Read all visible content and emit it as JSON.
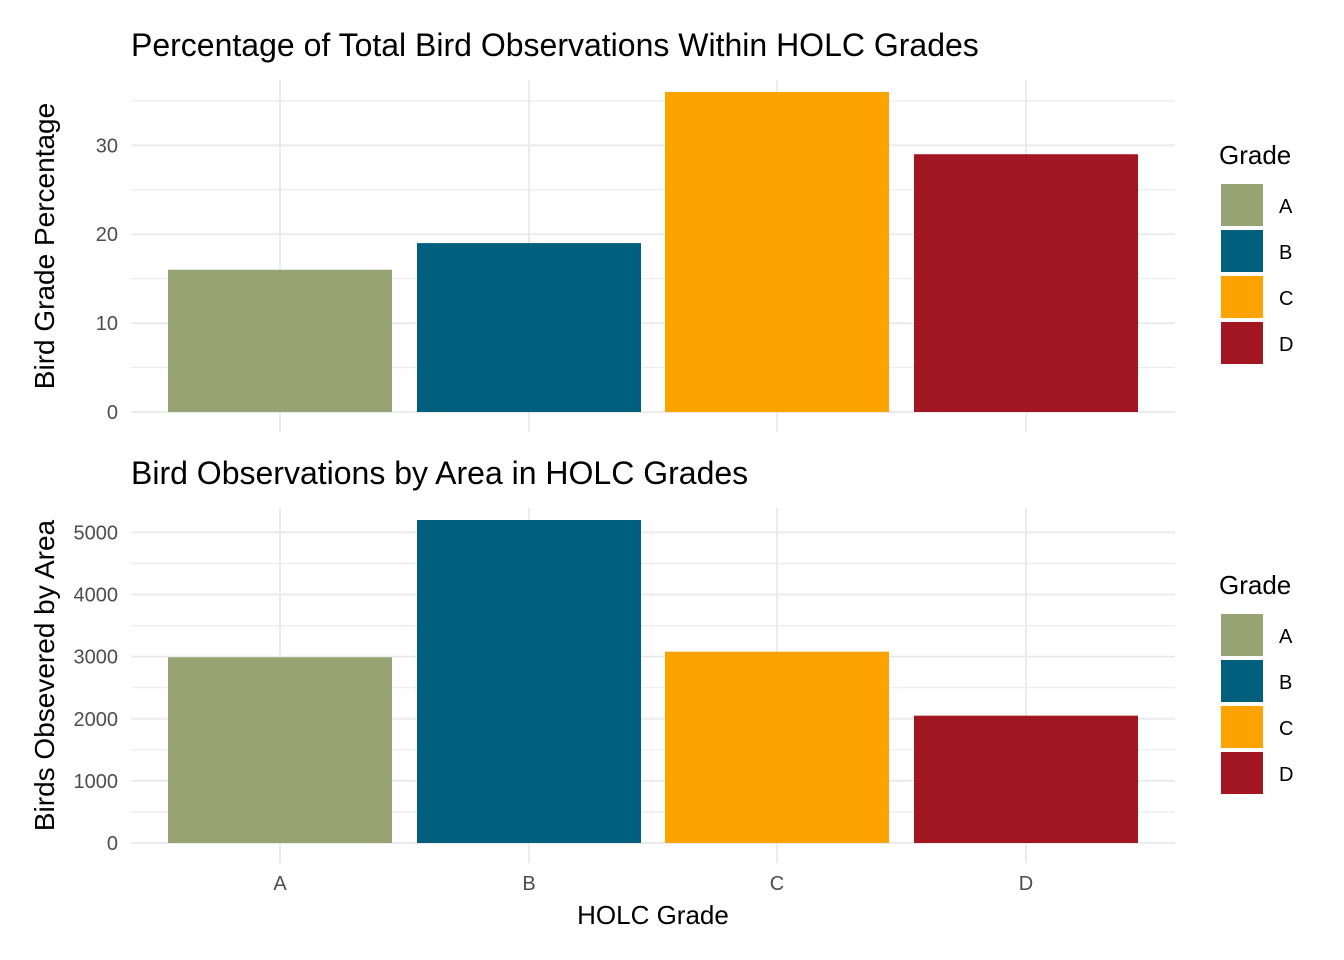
{
  "chart_data": [
    {
      "type": "bar",
      "title": "Percentage of Total Bird Observations Within HOLC Grades",
      "xlabel": "",
      "ylabel": "Bird Grade Percentage",
      "categories": [
        "A",
        "B",
        "C",
        "D"
      ],
      "values": [
        16,
        19,
        36,
        29
      ],
      "ylim": [
        0,
        36
      ],
      "yticks": [
        "0",
        "10",
        "20",
        "30"
      ],
      "show_x_ticks": false,
      "grid": true,
      "legend": {
        "title": "Grade",
        "position": "right",
        "entries": [
          "A",
          "B",
          "C",
          "D"
        ]
      }
    },
    {
      "type": "bar",
      "title": "Bird Observations by Area in HOLC Grades",
      "xlabel": "HOLC Grade",
      "ylabel": "Birds Obsevered by Area",
      "categories": [
        "A",
        "B",
        "C",
        "D"
      ],
      "values": [
        2990,
        5200,
        3080,
        2050
      ],
      "ylim": [
        0,
        5200
      ],
      "yticks": [
        "0",
        "1000",
        "2000",
        "3000",
        "4000",
        "5000"
      ],
      "show_x_ticks": true,
      "grid": true,
      "legend": {
        "title": "Grade",
        "position": "right",
        "entries": [
          "A",
          "B",
          "C",
          "D"
        ]
      }
    }
  ],
  "colors": {
    "A": "#97a373",
    "B": "#005f7c",
    "C": "#fca300",
    "D": "#a21622",
    "grid": "#ebebeb"
  }
}
